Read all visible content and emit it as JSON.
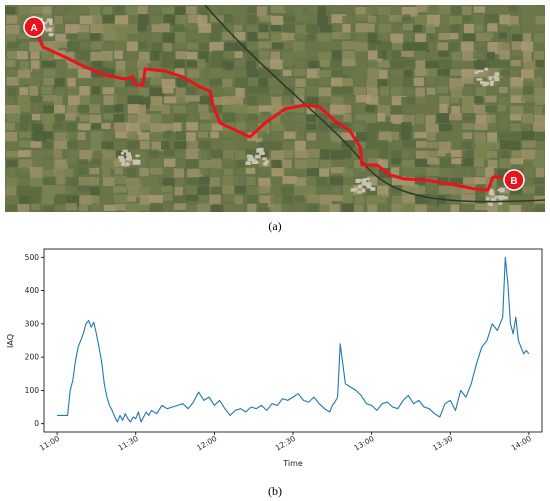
{
  "map": {
    "start_marker": "A",
    "end_marker": "B",
    "route_color": "#e8141a",
    "marker_color": "#e8141a",
    "terrain_colors": [
      "#5b6b3f",
      "#6e7a4a",
      "#8a8a5c",
      "#9c9068",
      "#7b8451",
      "#4e5f3a",
      "#a99a72",
      "#6b7548"
    ]
  },
  "captions": {
    "a": "(a)",
    "b": "(b)"
  },
  "chart_data": {
    "type": "line",
    "title": "",
    "xlabel": "Time",
    "ylabel": "IAQ",
    "x_tick_labels": [
      "11:00",
      "11:30",
      "12:00",
      "12:30",
      "13:00",
      "13:30",
      "14:00"
    ],
    "x_ticks_minutes": [
      660,
      690,
      720,
      750,
      780,
      810,
      840
    ],
    "xlim": [
      "10:55",
      "14:05"
    ],
    "y_tick_labels": [
      "0",
      "100",
      "200",
      "300",
      "400",
      "500"
    ],
    "y_ticks": [
      0,
      100,
      200,
      300,
      400,
      500
    ],
    "ylim": [
      -25,
      525
    ],
    "line_color": "#1f77b4",
    "grid": false,
    "series": [
      {
        "x": [
          "11:00",
          "11:03",
          "11:04",
          "11:05",
          "11:06",
          "11:07",
          "11:08",
          "11:10",
          "11:11",
          "11:12",
          "11:13",
          "11:14",
          "11:15",
          "11:16",
          "11:17",
          "11:18",
          "11:19",
          "11:20",
          "11:21",
          "11:22",
          "11:23",
          "11:24",
          "11:25",
          "11:26",
          "11:27",
          "11:28",
          "11:29",
          "11:30",
          "11:31",
          "11:32",
          "11:33",
          "11:34",
          "11:35",
          "11:36",
          "11:38",
          "11:40",
          "11:42",
          "11:44",
          "11:46",
          "11:48",
          "11:50",
          "11:52",
          "11:54",
          "11:56",
          "11:58",
          "12:00",
          "12:02",
          "12:04",
          "12:06",
          "12:08",
          "12:10",
          "12:12",
          "12:14",
          "12:16",
          "12:18",
          "12:20",
          "12:22",
          "12:24",
          "12:26",
          "12:28",
          "12:30",
          "12:32",
          "12:34",
          "12:36",
          "12:38",
          "12:40",
          "12:42",
          "12:44",
          "12:45",
          "12:46",
          "12:47",
          "12:48",
          "12:50",
          "12:52",
          "12:54",
          "12:56",
          "12:58",
          "13:00",
          "13:02",
          "13:04",
          "13:06",
          "13:08",
          "13:10",
          "13:12",
          "13:14",
          "13:16",
          "13:18",
          "13:20",
          "13:22",
          "13:24",
          "13:26",
          "13:28",
          "13:30",
          "13:32",
          "13:34",
          "13:36",
          "13:38",
          "13:40",
          "13:42",
          "13:44",
          "13:46",
          "13:48",
          "13:50",
          "13:51",
          "13:52",
          "13:53",
          "13:54",
          "13:55",
          "13:56",
          "13:57",
          "13:58",
          "13:59",
          "14:00"
        ],
        "values": [
          25,
          25,
          25,
          100,
          130,
          190,
          230,
          270,
          300,
          310,
          290,
          305,
          270,
          230,
          185,
          120,
          80,
          55,
          40,
          20,
          5,
          25,
          10,
          30,
          15,
          5,
          20,
          15,
          35,
          5,
          20,
          35,
          25,
          40,
          30,
          55,
          45,
          50,
          55,
          60,
          45,
          65,
          95,
          70,
          80,
          55,
          70,
          45,
          25,
          40,
          45,
          35,
          50,
          45,
          55,
          40,
          60,
          55,
          75,
          70,
          80,
          90,
          70,
          65,
          80,
          60,
          45,
          35,
          55,
          65,
          80,
          240,
          120,
          110,
          100,
          85,
          60,
          55,
          40,
          60,
          65,
          50,
          45,
          70,
          85,
          60,
          70,
          50,
          45,
          30,
          20,
          60,
          70,
          40,
          100,
          80,
          120,
          180,
          230,
          250,
          300,
          280,
          320,
          500,
          420,
          300,
          270,
          320,
          250,
          230,
          210,
          220,
          210
        ]
      }
    ]
  }
}
